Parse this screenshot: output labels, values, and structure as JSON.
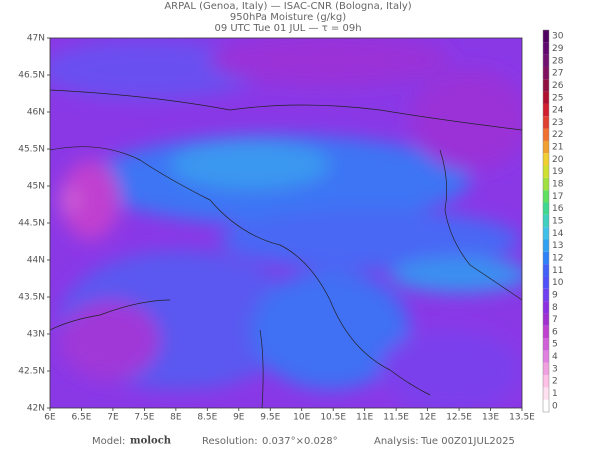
{
  "header": {
    "line1": "ARPAL (Genoa, Italy)  —  ISAC-CNR (Bologna, Italy)",
    "line2": "950hPa Moisture (g/kg)",
    "line3": "09 UTC Tue 01 JUL  —  τ = 09h"
  },
  "map": {
    "lat_labels": [
      "47N",
      "46.5N",
      "46N",
      "45.5N",
      "45N",
      "44.5N",
      "44N",
      "43.5N",
      "43N",
      "42.5N",
      "42N"
    ],
    "lon_labels": [
      "6E",
      "6.5E",
      "7E",
      "7.5E",
      "8E",
      "8.5E",
      "9E",
      "9.5E",
      "10E",
      "10.5E",
      "11E",
      "11.5E",
      "12E",
      "12.5E",
      "13E",
      "13.5E"
    ]
  },
  "colorbar": {
    "labels": [
      "0",
      "1",
      "2",
      "3",
      "4",
      "5",
      "6",
      "7",
      "8",
      "9",
      "10",
      "11",
      "12",
      "13",
      "14",
      "15",
      "16",
      "17",
      "18",
      "19",
      "20",
      "21",
      "22",
      "23",
      "24",
      "25",
      "26",
      "27",
      "28",
      "29",
      "30"
    ],
    "colors": [
      "#ffffff",
      "#ffe0f0",
      "#ffc0e8",
      "#f0a0e0",
      "#e080e0",
      "#d060d8",
      "#c040d0",
      "#a030d0",
      "#8a30e0",
      "#7040f0",
      "#5050f8",
      "#4060f8",
      "#3080f8",
      "#30a0f0",
      "#40c0e8",
      "#40d0c0",
      "#40d890",
      "#60e060",
      "#a0e040",
      "#d0e030",
      "#f0d030",
      "#f0a030",
      "#f07030",
      "#e04030",
      "#d02030",
      "#b01030",
      "#901040",
      "#801060",
      "#701070",
      "#600870",
      "#500060"
    ]
  },
  "footer": {
    "model_label": "Model:",
    "model": "moloch",
    "resolution_label": "Resolution:",
    "resolution": "0.037°×0.028°",
    "analysis_label": "Analysis:",
    "analysis": "Tue 00Z01JUL2025"
  }
}
